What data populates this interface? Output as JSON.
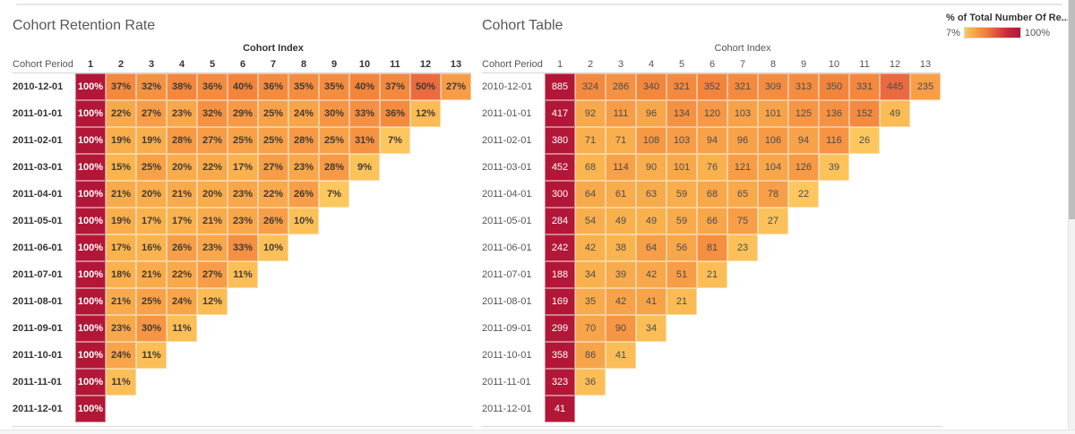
{
  "legend": {
    "title": "% of Total Number Of Re...",
    "min_label": "7%",
    "max_label": "100%"
  },
  "color_scale": {
    "stops": [
      [
        0.07,
        "#fdc75f"
      ],
      [
        0.15,
        "#fab54f"
      ],
      [
        0.22,
        "#f8a94b"
      ],
      [
        0.3,
        "#f69544"
      ],
      [
        0.4,
        "#f2843c"
      ],
      [
        0.5,
        "#e96b3f"
      ],
      [
        0.62,
        "#de4f3d"
      ],
      [
        0.78,
        "#c9293a"
      ],
      [
        1.0,
        "#b21737"
      ]
    ],
    "cell_text_dark": "#4c4c4c",
    "cell_text_light": "#ffffff"
  },
  "chart_data": [
    {
      "type": "heatmap",
      "title": "Cohort Retention Rate",
      "x_axis_title": "Cohort Index",
      "y_axis_title": "Cohort Period",
      "x_labels": [
        "1",
        "2",
        "3",
        "4",
        "5",
        "6",
        "7",
        "8",
        "9",
        "10",
        "11",
        "12",
        "13"
      ],
      "unit": "%",
      "color_mode": "percent",
      "rows": [
        {
          "label": "2010-12-01",
          "values": [
            100,
            37,
            32,
            38,
            36,
            40,
            36,
            35,
            35,
            40,
            37,
            50,
            27
          ]
        },
        {
          "label": "2011-01-01",
          "values": [
            100,
            22,
            27,
            23,
            32,
            29,
            25,
            24,
            30,
            33,
            36,
            12
          ]
        },
        {
          "label": "2011-02-01",
          "values": [
            100,
            19,
            19,
            28,
            27,
            25,
            25,
            28,
            25,
            31,
            7
          ]
        },
        {
          "label": "2011-03-01",
          "values": [
            100,
            15,
            25,
            20,
            22,
            17,
            27,
            23,
            28,
            9
          ]
        },
        {
          "label": "2011-04-01",
          "values": [
            100,
            21,
            20,
            21,
            20,
            23,
            22,
            26,
            7
          ]
        },
        {
          "label": "2011-05-01",
          "values": [
            100,
            19,
            17,
            17,
            21,
            23,
            26,
            10
          ]
        },
        {
          "label": "2011-06-01",
          "values": [
            100,
            17,
            16,
            26,
            23,
            33,
            10
          ]
        },
        {
          "label": "2011-07-01",
          "values": [
            100,
            18,
            21,
            22,
            27,
            11
          ]
        },
        {
          "label": "2011-08-01",
          "values": [
            100,
            21,
            25,
            24,
            12
          ]
        },
        {
          "label": "2011-09-01",
          "values": [
            100,
            23,
            30,
            11
          ]
        },
        {
          "label": "2011-10-01",
          "values": [
            100,
            24,
            11
          ]
        },
        {
          "label": "2011-11-01",
          "values": [
            100,
            11
          ]
        },
        {
          "label": "2011-12-01",
          "values": [
            100
          ]
        }
      ]
    },
    {
      "type": "heatmap",
      "title": "Cohort Table",
      "x_axis_title": "Cohort Index",
      "y_axis_title": "Cohort Period",
      "x_labels": [
        "1",
        "2",
        "3",
        "4",
        "5",
        "6",
        "7",
        "8",
        "9",
        "10",
        "11",
        "12",
        "13"
      ],
      "unit": "",
      "color_mode": "row_ratio",
      "rows": [
        {
          "label": "2010-12-01",
          "values": [
            885,
            324,
            286,
            340,
            321,
            352,
            321,
            309,
            313,
            350,
            331,
            445,
            235
          ]
        },
        {
          "label": "2011-01-01",
          "values": [
            417,
            92,
            111,
            96,
            134,
            120,
            103,
            101,
            125,
            136,
            152,
            49
          ]
        },
        {
          "label": "2011-02-01",
          "values": [
            380,
            71,
            71,
            108,
            103,
            94,
            96,
            106,
            94,
            116,
            26
          ]
        },
        {
          "label": "2011-03-01",
          "values": [
            452,
            68,
            114,
            90,
            101,
            76,
            121,
            104,
            126,
            39
          ]
        },
        {
          "label": "2011-04-01",
          "values": [
            300,
            64,
            61,
            63,
            59,
            68,
            65,
            78,
            22
          ]
        },
        {
          "label": "2011-05-01",
          "values": [
            284,
            54,
            49,
            49,
            59,
            66,
            75,
            27
          ]
        },
        {
          "label": "2011-06-01",
          "values": [
            242,
            42,
            38,
            64,
            56,
            81,
            23
          ]
        },
        {
          "label": "2011-07-01",
          "values": [
            188,
            34,
            39,
            42,
            51,
            21
          ]
        },
        {
          "label": "2011-08-01",
          "values": [
            169,
            35,
            42,
            41,
            21
          ]
        },
        {
          "label": "2011-09-01",
          "values": [
            299,
            70,
            90,
            34
          ]
        },
        {
          "label": "2011-10-01",
          "values": [
            358,
            86,
            41
          ]
        },
        {
          "label": "2011-11-01",
          "values": [
            323,
            36
          ]
        },
        {
          "label": "2011-12-01",
          "values": [
            41
          ]
        }
      ]
    }
  ]
}
